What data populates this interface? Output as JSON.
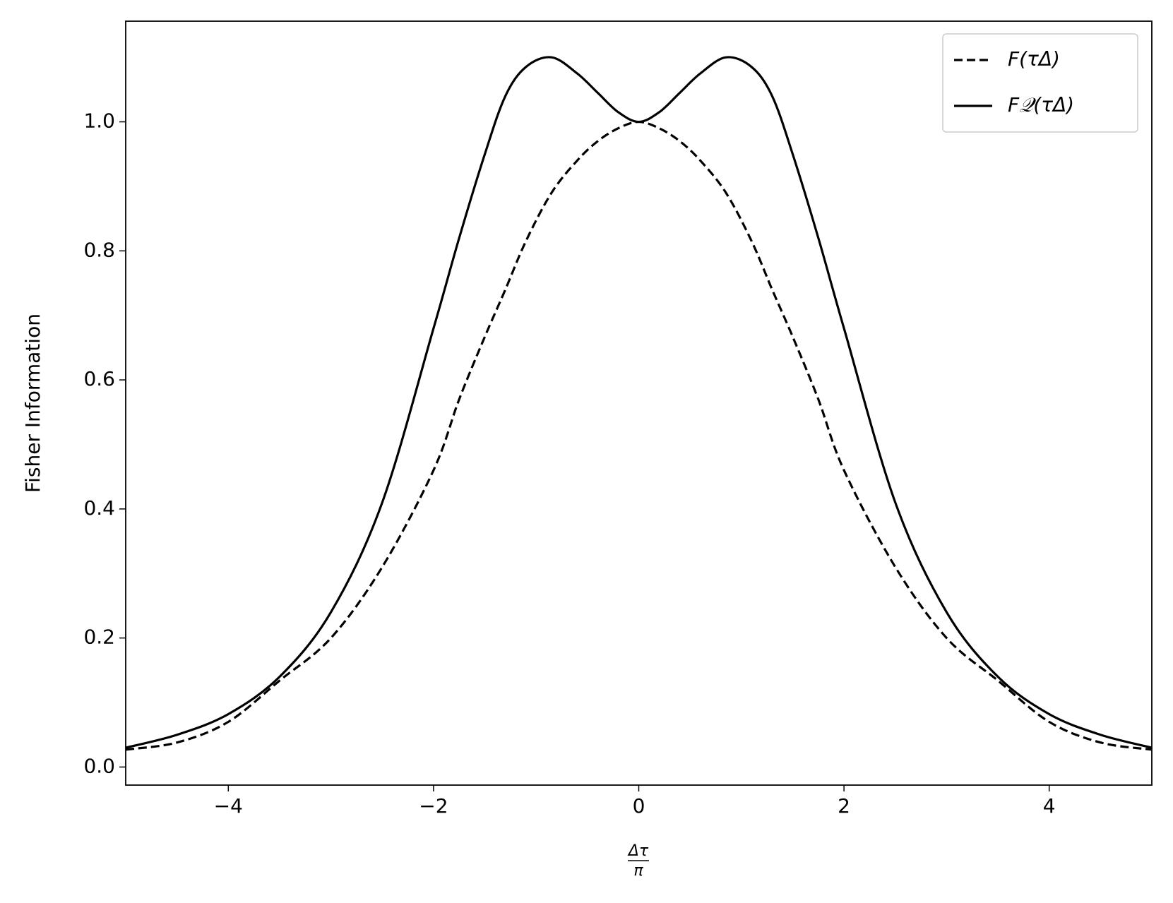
{
  "chart_data": {
    "type": "line",
    "ylabel": "Fisher Information",
    "xlabel": {
      "numerator": "Δτ",
      "denominator": "π"
    },
    "xlim": [
      -5,
      5
    ],
    "ylim": [
      -0.028,
      1.156
    ],
    "xticks": [
      {
        "value": -4,
        "label": "−4"
      },
      {
        "value": -2,
        "label": "−2"
      },
      0,
      2,
      4
    ],
    "yticks": [
      {
        "value": 0,
        "label": "0.0"
      },
      0.2,
      0.4,
      0.6,
      0.8,
      {
        "value": 1,
        "label": "1.0"
      }
    ],
    "legend": "upper right",
    "x": [
      -5,
      -4.5,
      -4,
      -3.5,
      -3,
      -2.5,
      -2,
      -1.75,
      -1.5,
      -1.3,
      -1.1,
      -0.85,
      -0.6,
      -0.4,
      -0.2,
      0,
      0.2,
      0.4,
      0.6,
      0.85,
      1.1,
      1.3,
      1.5,
      1.75,
      2,
      2.5,
      3,
      3.5,
      4,
      4.5,
      5
    ],
    "series": [
      {
        "name": "F(τΔ)",
        "color": "#000000",
        "dash": true,
        "values": [
          0.027,
          0.038,
          0.07,
          0.134,
          0.2,
          0.31,
          0.46,
          0.57,
          0.667,
          0.74,
          0.815,
          0.89,
          0.94,
          0.97,
          0.99,
          1.0,
          0.99,
          0.97,
          0.94,
          0.89,
          0.815,
          0.74,
          0.667,
          0.57,
          0.46,
          0.31,
          0.2,
          0.134,
          0.07,
          0.038,
          0.027
        ]
      },
      {
        "name": "F𝒬(τΔ)",
        "color": "#000000",
        "dash": false,
        "values": [
          0.03,
          0.05,
          0.082,
          0.14,
          0.24,
          0.41,
          0.68,
          0.82,
          0.95,
          1.04,
          1.085,
          1.1,
          1.075,
          1.045,
          1.015,
          1.0,
          1.015,
          1.045,
          1.075,
          1.1,
          1.085,
          1.04,
          0.95,
          0.82,
          0.68,
          0.41,
          0.24,
          0.14,
          0.082,
          0.05,
          0.03
        ]
      }
    ]
  }
}
